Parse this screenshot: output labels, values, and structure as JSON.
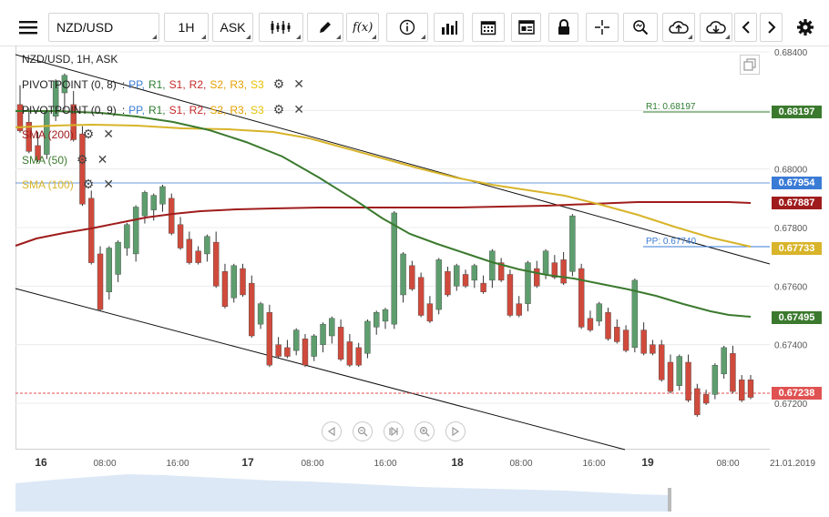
{
  "toolbar": {
    "symbol": "NZD/USD",
    "interval": "1H",
    "price_type": "ASK"
  },
  "header": {
    "title": "NZD/USD, 1H, ASK"
  },
  "indicators": {
    "pivot1": {
      "name": "PIVOTPOINT (0, 8)",
      "sep": ":",
      "pp": "PP,",
      "r1": "R1,",
      "s1": "S1,",
      "r2": "R2,",
      "s2": "S2,",
      "r3": "R3,",
      "s3": "S3"
    },
    "pivot2": {
      "name": "PIVOTPOINT (0, 9)",
      "sep": ":",
      "pp": "PP,",
      "r1": "R1,",
      "s1": "S1,",
      "r2": "R2,",
      "s2": "S2,",
      "r3": "R3,",
      "s3": "S3"
    },
    "sma200": "SMA (200)",
    "sma50": "SMA (50)",
    "sma100": "SMA (100)"
  },
  "colors": {
    "pp": "#3a7bd5",
    "r1": "#2e7d32",
    "s1": "#c62828",
    "r2": "#c62828",
    "s2": "#e6a000",
    "r3": "#e6a000",
    "s3": "#e6c200",
    "sma200": "#a01c1c",
    "sma50": "#3b7a2e",
    "sma100": "#d8b42a",
    "up": "#5e9e6e",
    "down": "#d04a3c"
  },
  "chart_data": {
    "type": "candlestick",
    "y_ticks": [
      "0.68400",
      "0.68200",
      "0.68000",
      "0.67800",
      "0.67600",
      "0.67400",
      "0.67200"
    ],
    "x_ticks": [
      {
        "label": "16",
        "bold": true
      },
      {
        "label": "08:00",
        "bold": false
      },
      {
        "label": "16:00",
        "bold": false
      },
      {
        "label": "17",
        "bold": true
      },
      {
        "label": "08:00",
        "bold": false
      },
      {
        "label": "16:00",
        "bold": false
      },
      {
        "label": "18",
        "bold": true
      },
      {
        "label": "08:00",
        "bold": false
      },
      {
        "label": "16:00",
        "bold": false
      },
      {
        "label": "19",
        "bold": true
      },
      {
        "label": "08:00",
        "bold": false
      },
      {
        "label": "21.01.2019",
        "bold": false
      }
    ],
    "ylim": [
      0.6712,
      0.6842
    ],
    "current_price": "0.67238",
    "price_labels": [
      {
        "value": "0.68197",
        "color": "#3b7a2e"
      },
      {
        "value": "0.67954",
        "color": "#3a7bd5"
      },
      {
        "value": "0.67887",
        "color": "#a01c1c"
      },
      {
        "value": "0.67733",
        "color": "#d8b42a"
      },
      {
        "value": "0.67495",
        "color": "#3b7a2e"
      },
      {
        "value": "0.67238",
        "color": "#e05252"
      }
    ],
    "annotations": {
      "r1": "R1: 0.68197",
      "pp": "PP: 0.67740"
    },
    "candles": [
      [
        0.6822,
        0.6828,
        0.6816,
        0.6813
      ],
      [
        0.6816,
        0.682,
        0.6808,
        0.6806
      ],
      [
        0.6808,
        0.6812,
        0.6805,
        0.6803
      ],
      [
        0.6805,
        0.6818,
        0.6804,
        0.682
      ],
      [
        0.6818,
        0.6826,
        0.6817,
        0.683
      ],
      [
        0.6826,
        0.683,
        0.682,
        0.6832
      ],
      [
        0.6822,
        0.6826,
        0.6812,
        0.681
      ],
      [
        0.6812,
        0.6814,
        0.679,
        0.6788
      ],
      [
        0.679,
        0.6792,
        0.677,
        0.6768
      ],
      [
        0.6771,
        0.6773,
        0.6758,
        0.6752
      ],
      [
        0.6758,
        0.6771,
        0.6756,
        0.6773
      ],
      [
        0.6764,
        0.6773,
        0.6762,
        0.6775
      ],
      [
        0.6773,
        0.6779,
        0.6771,
        0.6781
      ],
      [
        0.6771,
        0.6785,
        0.6769,
        0.6787
      ],
      [
        0.6784,
        0.6789,
        0.6782,
        0.6792
      ],
      [
        0.6786,
        0.6788,
        0.6783,
        0.6791
      ],
      [
        0.6788,
        0.6792,
        0.6786,
        0.6794
      ],
      [
        0.679,
        0.6791,
        0.6781,
        0.6778
      ],
      [
        0.6781,
        0.6783,
        0.6776,
        0.6773
      ],
      [
        0.6776,
        0.6778,
        0.677,
        0.6768
      ],
      [
        0.6772,
        0.6773,
        0.677,
        0.6768
      ],
      [
        0.6771,
        0.6775,
        0.6769,
        0.6777
      ],
      [
        0.6775,
        0.6778,
        0.6764,
        0.676
      ],
      [
        0.6765,
        0.6767,
        0.6757,
        0.6753
      ],
      [
        0.6756,
        0.6766,
        0.6755,
        0.6767
      ],
      [
        0.6766,
        0.6767,
        0.676,
        0.6757
      ],
      [
        0.6761,
        0.6763,
        0.6747,
        0.6743
      ],
      [
        0.6747,
        0.6752,
        0.6746,
        0.6754
      ],
      [
        0.6751,
        0.6753,
        0.6736,
        0.6733
      ],
      [
        0.674,
        0.6742,
        0.6739,
        0.6736
      ],
      [
        0.6739,
        0.6741,
        0.6738,
        0.6736
      ],
      [
        0.6738,
        0.6743,
        0.6737,
        0.6745
      ],
      [
        0.6742,
        0.6743,
        0.6735,
        0.6733
      ],
      [
        0.6736,
        0.6741,
        0.6735,
        0.6743
      ],
      [
        0.674,
        0.6744,
        0.6738,
        0.6747
      ],
      [
        0.6743,
        0.6747,
        0.6741,
        0.6749
      ],
      [
        0.6746,
        0.6748,
        0.6738,
        0.6735
      ],
      [
        0.6741,
        0.6743,
        0.6738,
        0.6733
      ],
      [
        0.6739,
        0.674,
        0.6737,
        0.6733
      ],
      [
        0.6737,
        0.6746,
        0.6736,
        0.6748
      ],
      [
        0.6746,
        0.6749,
        0.6744,
        0.6751
      ],
      [
        0.6748,
        0.675,
        0.6746,
        0.6752
      ],
      [
        0.6747,
        0.6757,
        0.6746,
        0.6785
      ],
      [
        0.6757,
        0.6769,
        0.6755,
        0.6771
      ],
      [
        0.6767,
        0.6768,
        0.6762,
        0.6759
      ],
      [
        0.6763,
        0.6764,
        0.6752,
        0.675
      ],
      [
        0.6754,
        0.6756,
        0.675,
        0.6748
      ],
      [
        0.6752,
        0.6767,
        0.6751,
        0.6769
      ],
      [
        0.6765,
        0.6766,
        0.6759,
        0.6757
      ],
      [
        0.676,
        0.6765,
        0.6759,
        0.6767
      ],
      [
        0.6764,
        0.6765,
        0.6762,
        0.676
      ],
      [
        0.6762,
        0.6764,
        0.676,
        0.6767
      ],
      [
        0.6761,
        0.6763,
        0.676,
        0.6758
      ],
      [
        0.6762,
        0.677,
        0.676,
        0.6772
      ],
      [
        0.6768,
        0.6769,
        0.6764,
        0.6762
      ],
      [
        0.6764,
        0.6765,
        0.6752,
        0.675
      ],
      [
        0.6754,
        0.6756,
        0.6752,
        0.675
      ],
      [
        0.6754,
        0.6766,
        0.6752,
        0.6768
      ],
      [
        0.6766,
        0.6768,
        0.6762,
        0.676
      ],
      [
        0.6764,
        0.677,
        0.6763,
        0.6772
      ],
      [
        0.6768,
        0.677,
        0.6765,
        0.6763
      ],
      [
        0.6769,
        0.6771,
        0.6765,
        0.6761
      ],
      [
        0.6765,
        0.6767,
        0.6764,
        0.6784
      ],
      [
        0.6766,
        0.6767,
        0.6748,
        0.6746
      ],
      [
        0.6749,
        0.6751,
        0.6747,
        0.6745
      ],
      [
        0.6748,
        0.6752,
        0.6747,
        0.6754
      ],
      [
        0.6751,
        0.6752,
        0.6744,
        0.6742
      ],
      [
        0.6746,
        0.6748,
        0.6743,
        0.6741
      ],
      [
        0.6745,
        0.6746,
        0.674,
        0.6738
      ],
      [
        0.6739,
        0.676,
        0.6738,
        0.6762
      ],
      [
        0.6745,
        0.6747,
        0.6739,
        0.6737
      ],
      [
        0.674,
        0.6741,
        0.6739,
        0.6737
      ],
      [
        0.674,
        0.6741,
        0.673,
        0.6728
      ],
      [
        0.6734,
        0.6736,
        0.6726,
        0.6724
      ],
      [
        0.6726,
        0.6734,
        0.6725,
        0.6736
      ],
      [
        0.6734,
        0.6736,
        0.6723,
        0.6721
      ],
      [
        0.6725,
        0.6726,
        0.6722,
        0.6716
      ],
      [
        0.6723,
        0.6724,
        0.6722,
        0.672
      ],
      [
        0.6723,
        0.6731,
        0.6722,
        0.6733
      ],
      [
        0.673,
        0.6737,
        0.6729,
        0.6739
      ],
      [
        0.6737,
        0.6739,
        0.6726,
        0.6724
      ],
      [
        0.6728,
        0.6729,
        0.6726,
        0.6721
      ],
      [
        0.6728,
        0.6729,
        0.6724,
        0.6722
      ]
    ]
  }
}
